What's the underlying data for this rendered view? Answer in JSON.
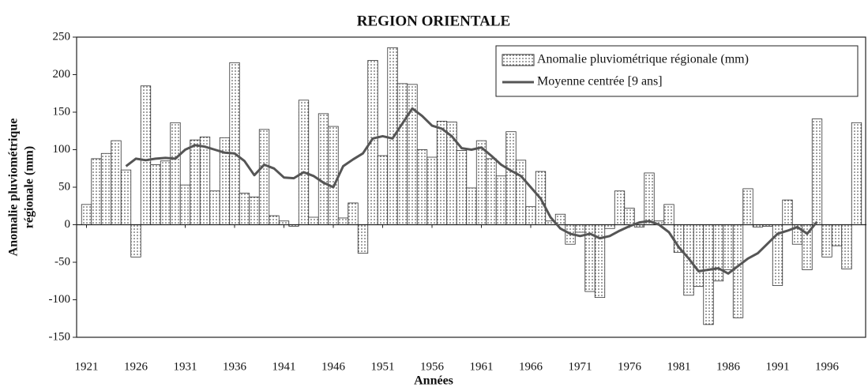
{
  "chart_data": {
    "type": "bar_line",
    "title": "REGION ORIENTALE",
    "ylabel": [
      "Anomalie pluviométrique",
      "régionale (mm)"
    ],
    "xlabel": "Années",
    "xlim": [
      1920,
      2000
    ],
    "xticks": [
      1921,
      1926,
      1931,
      1936,
      1941,
      1946,
      1951,
      1956,
      1961,
      1966,
      1971,
      1976,
      1981,
      1986,
      1991,
      1996
    ],
    "ylim": [
      -150,
      250
    ],
    "yticks": [
      -150,
      -100,
      -50,
      0,
      50,
      100,
      150,
      200,
      250
    ],
    "legend": "top-right",
    "series": [
      {
        "name": "Anomalie pluviométrique régionale (mm)",
        "kind": "bar",
        "color": "#333333",
        "x": [
          1921,
          1922,
          1923,
          1924,
          1925,
          1926,
          1927,
          1928,
          1929,
          1930,
          1931,
          1932,
          1933,
          1934,
          1935,
          1936,
          1937,
          1938,
          1939,
          1940,
          1941,
          1942,
          1943,
          1944,
          1945,
          1946,
          1947,
          1948,
          1949,
          1950,
          1951,
          1952,
          1953,
          1954,
          1955,
          1956,
          1957,
          1958,
          1959,
          1960,
          1961,
          1962,
          1963,
          1964,
          1965,
          1966,
          1967,
          1968,
          1969,
          1970,
          1971,
          1972,
          1973,
          1974,
          1975,
          1976,
          1977,
          1978,
          1979,
          1980,
          1981,
          1982,
          1983,
          1984,
          1985,
          1986,
          1987,
          1988,
          1989,
          1990,
          1991,
          1992,
          1993,
          1994,
          1995,
          1996,
          1997,
          1998,
          1999
        ],
        "values": [
          27,
          88,
          95,
          112,
          73,
          -43,
          185,
          80,
          85,
          136,
          53,
          113,
          117,
          45,
          116,
          216,
          42,
          37,
          127,
          12,
          5,
          -2,
          166,
          10,
          148,
          131,
          9,
          29,
          -38,
          219,
          92,
          236,
          188,
          187,
          100,
          90,
          138,
          137,
          99,
          49,
          112,
          88,
          65,
          124,
          86,
          24,
          71,
          5,
          14,
          -26,
          -10,
          -89,
          -97,
          -5,
          45,
          22,
          -3,
          69,
          5,
          27,
          -37,
          -94,
          -82,
          -133,
          -75,
          -60,
          -124,
          48,
          -3,
          -2,
          -81,
          33,
          -26,
          -60,
          141,
          -43,
          -28,
          -59,
          136
        ]
      },
      {
        "name": "Moyenne centrée [9 ans]",
        "kind": "line",
        "color": "#555555",
        "x": [
          1925,
          1926,
          1927,
          1928,
          1929,
          1930,
          1931,
          1932,
          1933,
          1934,
          1935,
          1936,
          1937,
          1938,
          1939,
          1940,
          1941,
          1942,
          1943,
          1944,
          1945,
          1946,
          1947,
          1948,
          1949,
          1950,
          1951,
          1952,
          1953,
          1954,
          1955,
          1956,
          1957,
          1958,
          1959,
          1960,
          1961,
          1962,
          1963,
          1964,
          1965,
          1966,
          1967,
          1968,
          1969,
          1970,
          1971,
          1972,
          1973,
          1974,
          1975,
          1976,
          1977,
          1978,
          1979,
          1980,
          1981,
          1982,
          1983,
          1984,
          1985,
          1986,
          1987,
          1988,
          1989,
          1990,
          1991,
          1992,
          1993,
          1994,
          1995
        ],
        "values": [
          78,
          88,
          86,
          88,
          89,
          88,
          100,
          106,
          104,
          100,
          96,
          95,
          85,
          66,
          80,
          75,
          63,
          62,
          70,
          65,
          56,
          50,
          78,
          87,
          95,
          115,
          118,
          115,
          135,
          155,
          145,
          132,
          128,
          118,
          102,
          100,
          103,
          92,
          80,
          72,
          65,
          50,
          35,
          10,
          -5,
          -12,
          -15,
          -12,
          -18,
          -15,
          -8,
          -2,
          3,
          5,
          0,
          -10,
          -30,
          -45,
          -62,
          -60,
          -58,
          -65,
          -55,
          -45,
          -38,
          -25,
          -12,
          -8,
          -3,
          -12,
          4
        ]
      }
    ]
  }
}
